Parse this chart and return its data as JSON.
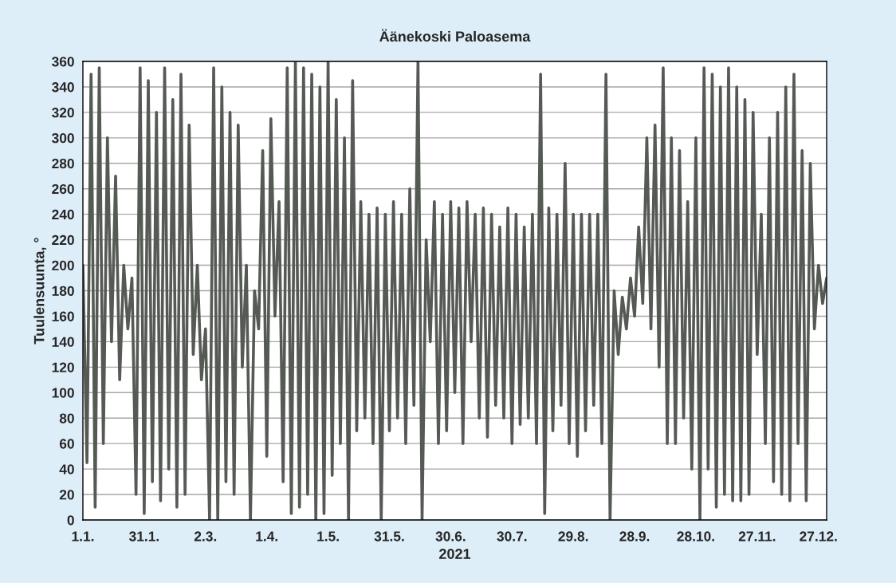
{
  "chart_data": {
    "type": "line",
    "title": "Äänekoski Paloasema",
    "xlabel": "2021",
    "ylabel": "Tuulensuunta, °",
    "x": [
      "2021-01-01",
      "2021-01-03",
      "2021-01-05",
      "2021-01-07",
      "2021-01-09",
      "2021-01-11",
      "2021-01-13",
      "2021-01-15",
      "2021-01-17",
      "2021-01-19",
      "2021-01-21",
      "2021-01-23",
      "2021-01-25",
      "2021-01-27",
      "2021-01-29",
      "2021-01-31",
      "2021-02-02",
      "2021-02-04",
      "2021-02-06",
      "2021-02-08",
      "2021-02-10",
      "2021-02-12",
      "2021-02-14",
      "2021-02-16",
      "2021-02-18",
      "2021-02-20",
      "2021-02-22",
      "2021-02-24",
      "2021-02-26",
      "2021-02-28",
      "2021-03-02",
      "2021-03-04",
      "2021-03-06",
      "2021-03-08",
      "2021-03-10",
      "2021-03-12",
      "2021-03-14",
      "2021-03-16",
      "2021-03-18",
      "2021-03-20",
      "2021-03-22",
      "2021-03-24",
      "2021-03-26",
      "2021-03-28",
      "2021-03-30",
      "2021-04-01",
      "2021-04-03",
      "2021-04-05",
      "2021-04-07",
      "2021-04-09",
      "2021-04-11",
      "2021-04-13",
      "2021-04-15",
      "2021-04-17",
      "2021-04-19",
      "2021-04-21",
      "2021-04-23",
      "2021-04-25",
      "2021-04-27",
      "2021-04-29",
      "2021-05-01",
      "2021-05-03",
      "2021-05-05",
      "2021-05-07",
      "2021-05-09",
      "2021-05-11",
      "2021-05-13",
      "2021-05-15",
      "2021-05-17",
      "2021-05-19",
      "2021-05-21",
      "2021-05-23",
      "2021-05-25",
      "2021-05-27",
      "2021-05-29",
      "2021-05-31",
      "2021-06-02",
      "2021-06-04",
      "2021-06-06",
      "2021-06-08",
      "2021-06-10",
      "2021-06-12",
      "2021-06-14",
      "2021-06-16",
      "2021-06-18",
      "2021-06-20",
      "2021-06-22",
      "2021-06-24",
      "2021-06-26",
      "2021-06-28",
      "2021-06-30",
      "2021-07-02",
      "2021-07-04",
      "2021-07-06",
      "2021-07-08",
      "2021-07-10",
      "2021-07-12",
      "2021-07-14",
      "2021-07-16",
      "2021-07-18",
      "2021-07-20",
      "2021-07-22",
      "2021-07-24",
      "2021-07-26",
      "2021-07-28",
      "2021-07-30",
      "2021-08-01",
      "2021-08-03",
      "2021-08-05",
      "2021-08-07",
      "2021-08-09",
      "2021-08-11",
      "2021-08-13",
      "2021-08-15",
      "2021-08-17",
      "2021-08-19",
      "2021-08-21",
      "2021-08-23",
      "2021-08-25",
      "2021-08-27",
      "2021-08-29",
      "2021-08-31",
      "2021-09-02",
      "2021-09-04",
      "2021-09-06",
      "2021-09-08",
      "2021-09-10",
      "2021-09-12",
      "2021-09-14",
      "2021-09-16",
      "2021-09-18",
      "2021-09-20",
      "2021-09-22",
      "2021-09-24",
      "2021-09-26",
      "2021-09-28",
      "2021-09-30",
      "2021-10-02",
      "2021-10-04",
      "2021-10-06",
      "2021-10-08",
      "2021-10-10",
      "2021-10-12",
      "2021-10-14",
      "2021-10-16",
      "2021-10-18",
      "2021-10-20",
      "2021-10-22",
      "2021-10-24",
      "2021-10-26",
      "2021-10-28",
      "2021-10-30",
      "2021-11-01",
      "2021-11-03",
      "2021-11-05",
      "2021-11-07",
      "2021-11-09",
      "2021-11-11",
      "2021-11-13",
      "2021-11-15",
      "2021-11-17",
      "2021-11-19",
      "2021-11-21",
      "2021-11-23",
      "2021-11-25",
      "2021-11-27",
      "2021-11-29",
      "2021-12-01",
      "2021-12-03",
      "2021-12-05",
      "2021-12-07",
      "2021-12-09",
      "2021-12-11",
      "2021-12-13",
      "2021-12-15",
      "2021-12-17",
      "2021-12-19",
      "2021-12-21",
      "2021-12-23",
      "2021-12-25",
      "2021-12-27",
      "2021-12-29",
      "2021-12-31"
    ],
    "series": [
      {
        "color": "#555a55",
        "values": [
          200,
          45,
          350,
          10,
          355,
          60,
          300,
          140,
          270,
          110,
          200,
          150,
          190,
          20,
          355,
          5,
          345,
          30,
          320,
          15,
          355,
          40,
          330,
          10,
          350,
          20,
          310,
          130,
          200,
          110,
          150,
          0,
          355,
          0,
          340,
          30,
          320,
          20,
          310,
          120,
          200,
          0,
          180,
          150,
          290,
          50,
          315,
          160,
          250,
          30,
          355,
          5,
          360,
          10,
          355,
          20,
          350,
          0,
          340,
          5,
          360,
          35,
          330,
          60,
          300,
          0,
          345,
          70,
          250,
          80,
          240,
          60,
          245,
          0,
          240,
          70,
          250,
          80,
          240,
          60,
          260,
          90,
          360,
          0,
          220,
          140,
          250,
          60,
          240,
          70,
          250,
          100,
          245,
          60,
          250,
          140,
          240,
          80,
          245,
          65,
          240,
          90,
          230,
          80,
          245,
          60,
          240,
          75,
          230,
          80,
          240,
          60,
          350,
          5,
          245,
          70,
          240,
          90,
          280,
          60,
          240,
          50,
          240,
          70,
          240,
          90,
          240,
          60,
          350,
          0,
          180,
          130,
          175,
          150,
          190,
          160,
          230,
          170,
          300,
          150,
          310,
          120,
          355,
          60,
          300,
          60,
          290,
          80,
          250,
          40,
          300,
          0,
          355,
          40,
          350,
          10,
          340,
          20,
          355,
          15,
          340,
          15,
          330,
          20,
          320,
          130,
          240,
          60,
          300,
          30,
          320,
          20,
          340,
          15,
          350,
          60,
          290,
          15,
          280,
          150,
          200,
          170,
          190
        ]
      }
    ],
    "xlim": [
      "2021-01-01",
      "2021-12-31"
    ],
    "xticks": [
      {
        "value": "2021-01-01",
        "label": "1.1."
      },
      {
        "value": "2021-01-31",
        "label": "31.1."
      },
      {
        "value": "2021-03-02",
        "label": "2.3."
      },
      {
        "value": "2021-04-01",
        "label": "1.4."
      },
      {
        "value": "2021-05-01",
        "label": "1.5."
      },
      {
        "value": "2021-05-31",
        "label": "31.5."
      },
      {
        "value": "2021-06-30",
        "label": "30.6."
      },
      {
        "value": "2021-07-30",
        "label": "30.7."
      },
      {
        "value": "2021-08-29",
        "label": "29.8."
      },
      {
        "value": "2021-09-28",
        "label": "28.9."
      },
      {
        "value": "2021-10-28",
        "label": "28.10."
      },
      {
        "value": "2021-11-27",
        "label": "27.11."
      },
      {
        "value": "2021-12-27",
        "label": "27.12."
      }
    ],
    "ylim": [
      0,
      360
    ],
    "yticks": [
      0,
      20,
      40,
      60,
      80,
      100,
      120,
      140,
      160,
      180,
      200,
      220,
      240,
      260,
      280,
      300,
      320,
      340,
      360
    ],
    "grid": "y",
    "marker": "none",
    "line_style": "solid",
    "legend": false
  }
}
